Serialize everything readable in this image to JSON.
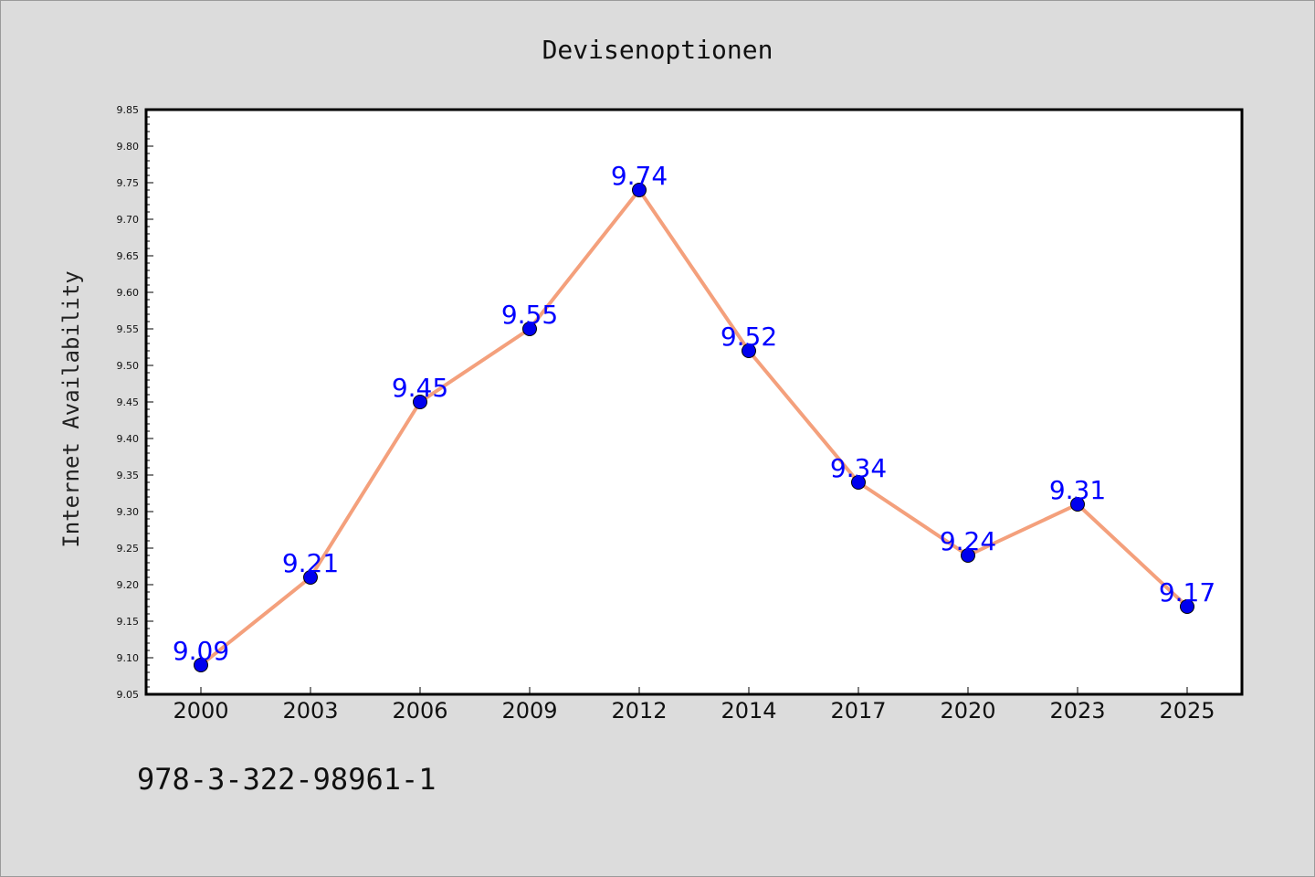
{
  "chart_data": {
    "type": "line",
    "title": "Devisenoptionen",
    "xlabel": "",
    "ylabel": "Internet Availability",
    "categories": [
      "2000",
      "2003",
      "2006",
      "2009",
      "2012",
      "2014",
      "2017",
      "2020",
      "2023",
      "2025"
    ],
    "series": [
      {
        "values": [
          9.09,
          9.21,
          9.45,
          9.55,
          9.74,
          9.52,
          9.34,
          9.24,
          9.31,
          9.17
        ],
        "data_labels": [
          "9.09",
          "9.21",
          "9.45",
          "9.55",
          "9.74",
          "9.52",
          "9.34",
          "9.24",
          "9.31",
          "9.17"
        ],
        "line_color": "#f4a07c",
        "marker_color": "#0000ee"
      }
    ],
    "ylim": [
      9.05,
      9.85
    ],
    "yticks": [
      "9.05",
      "9.10",
      "9.15",
      "9.20",
      "9.25",
      "9.30",
      "9.35",
      "9.40",
      "9.45",
      "9.50",
      "9.55",
      "9.60",
      "9.65",
      "9.70",
      "9.75",
      "9.80",
      "9.85"
    ],
    "grid": false,
    "legend": "none",
    "background_color": "#dcdcdc",
    "plot_background_color": "#ffffff",
    "label_color": "#0000ff"
  },
  "footer_text": "978-3-322-98961-1"
}
